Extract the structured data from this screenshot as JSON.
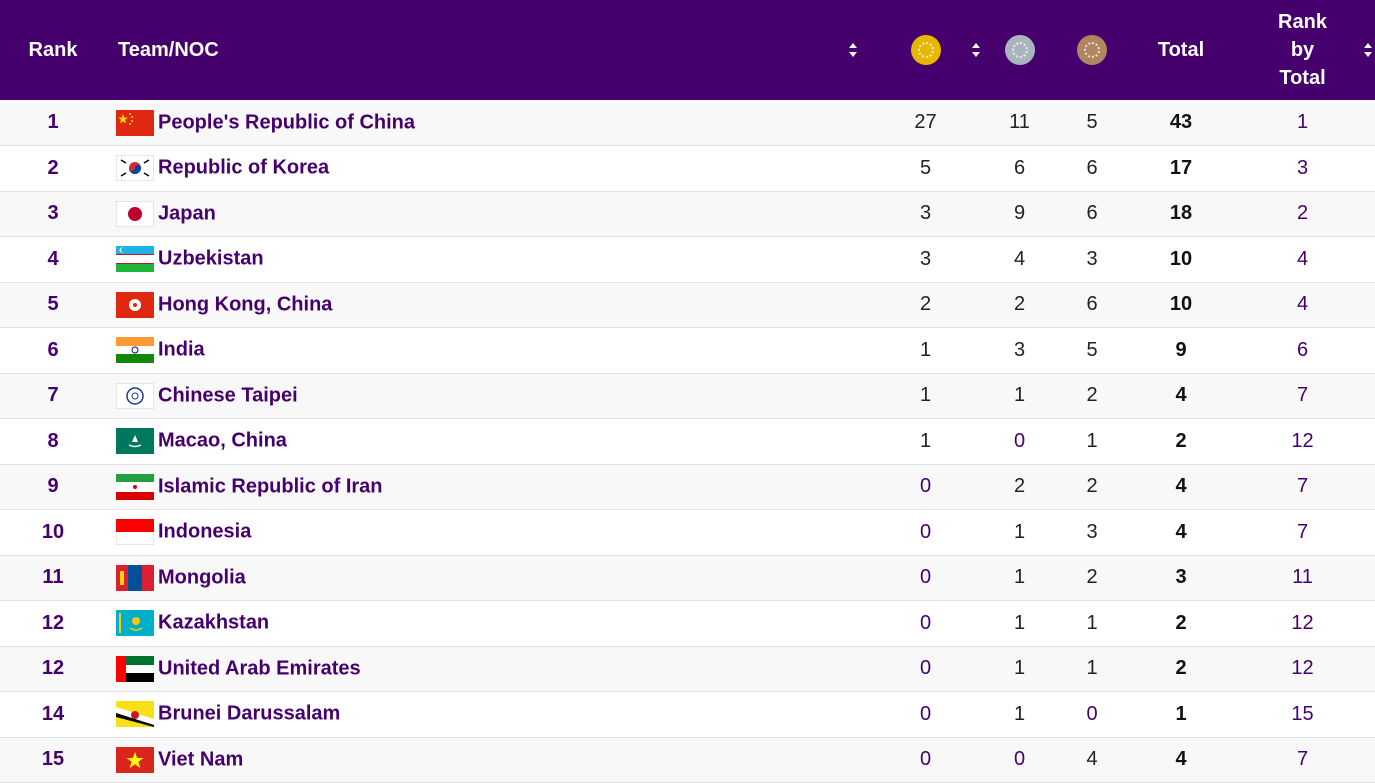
{
  "header": {
    "rank": "Rank",
    "team": "Team/NOC",
    "total": "Total",
    "rank_by_total_line1": "Rank",
    "rank_by_total_line2": "by",
    "rank_by_total_line3": "Total",
    "medal_icons": [
      "gold-medal-icon",
      "silver-medal-icon",
      "bronze-medal-icon"
    ],
    "colors": {
      "header_bg": "#46006e",
      "gold": "#e8b800",
      "silver": "#a9b4bd",
      "bronze": "#b08562"
    }
  },
  "rows": [
    {
      "rank": "1",
      "flag": "china",
      "name": "People's Republic of China",
      "gold": "27",
      "silver": "11",
      "bronze": "5",
      "total": "43",
      "rank_by_total": "1"
    },
    {
      "rank": "2",
      "flag": "korea",
      "name": "Republic of Korea",
      "gold": "5",
      "silver": "6",
      "bronze": "6",
      "total": "17",
      "rank_by_total": "3"
    },
    {
      "rank": "3",
      "flag": "japan",
      "name": "Japan",
      "gold": "3",
      "silver": "9",
      "bronze": "6",
      "total": "18",
      "rank_by_total": "2"
    },
    {
      "rank": "4",
      "flag": "uzbekistan",
      "name": "Uzbekistan",
      "gold": "3",
      "silver": "4",
      "bronze": "3",
      "total": "10",
      "rank_by_total": "4"
    },
    {
      "rank": "5",
      "flag": "hongkong",
      "name": "Hong Kong, China",
      "gold": "2",
      "silver": "2",
      "bronze": "6",
      "total": "10",
      "rank_by_total": "4"
    },
    {
      "rank": "6",
      "flag": "india",
      "name": "India",
      "gold": "1",
      "silver": "3",
      "bronze": "5",
      "total": "9",
      "rank_by_total": "6"
    },
    {
      "rank": "7",
      "flag": "taipei",
      "name": "Chinese Taipei",
      "gold": "1",
      "silver": "1",
      "bronze": "2",
      "total": "4",
      "rank_by_total": "7"
    },
    {
      "rank": "8",
      "flag": "macao",
      "name": "Macao, China",
      "gold": "1",
      "silver": "0",
      "bronze": "1",
      "total": "2",
      "rank_by_total": "12"
    },
    {
      "rank": "9",
      "flag": "iran",
      "name": "Islamic Republic of Iran",
      "gold": "0",
      "silver": "2",
      "bronze": "2",
      "total": "4",
      "rank_by_total": "7"
    },
    {
      "rank": "10",
      "flag": "indonesia",
      "name": "Indonesia",
      "gold": "0",
      "silver": "1",
      "bronze": "3",
      "total": "4",
      "rank_by_total": "7"
    },
    {
      "rank": "11",
      "flag": "mongolia",
      "name": "Mongolia",
      "gold": "0",
      "silver": "1",
      "bronze": "2",
      "total": "3",
      "rank_by_total": "11"
    },
    {
      "rank": "12",
      "flag": "kazakhstan",
      "name": "Kazakhstan",
      "gold": "0",
      "silver": "1",
      "bronze": "1",
      "total": "2",
      "rank_by_total": "12"
    },
    {
      "rank": "12",
      "flag": "uae",
      "name": "United Arab Emirates",
      "gold": "0",
      "silver": "1",
      "bronze": "1",
      "total": "2",
      "rank_by_total": "12"
    },
    {
      "rank": "14",
      "flag": "brunei",
      "name": "Brunei Darussalam",
      "gold": "0",
      "silver": "1",
      "bronze": "0",
      "total": "1",
      "rank_by_total": "15"
    },
    {
      "rank": "15",
      "flag": "vietnam",
      "name": "Viet Nam",
      "gold": "0",
      "silver": "0",
      "bronze": "4",
      "total": "4",
      "rank_by_total": "7"
    }
  ]
}
